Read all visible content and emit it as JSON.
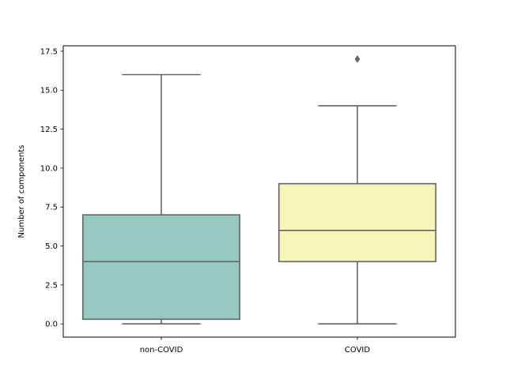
{
  "chart_data": {
    "type": "box",
    "ylabel": "Number of components",
    "xlabel": "",
    "ylim": [
      -0.85,
      17.85
    ],
    "yticks": [
      0.0,
      2.5,
      5.0,
      7.5,
      10.0,
      12.5,
      15.0,
      17.5
    ],
    "ytick_labels": [
      "0.0",
      "2.5",
      "5.0",
      "7.5",
      "10.0",
      "12.5",
      "15.0",
      "17.5"
    ],
    "grid": false,
    "categories": [
      "non-COVID",
      "COVID"
    ],
    "series": [
      {
        "category": "non-COVID",
        "whisker_low": 0,
        "q1": 0.3,
        "median": 4,
        "q3": 7,
        "whisker_high": 16,
        "outliers": [],
        "color": "#96c9c0"
      },
      {
        "category": "COVID",
        "whisker_low": 0,
        "q1": 4,
        "median": 6,
        "q3": 9,
        "whisker_high": 14,
        "outliers": [
          17
        ],
        "color": "#f6f6bb"
      }
    ],
    "line_color": "#656565"
  }
}
